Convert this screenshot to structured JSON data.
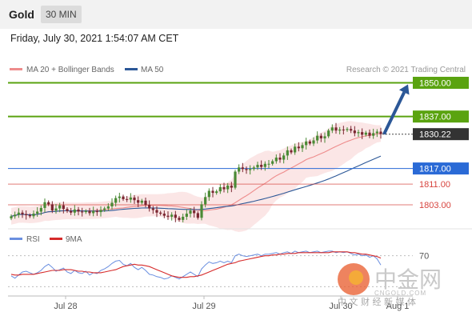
{
  "header": {
    "instrument": "Gold",
    "timeframe": "30 MIN"
  },
  "timestamp": "Friday, July 30, 2021 1:54:07 AM CET",
  "watermark": {
    "cn_name": "中金网",
    "domain": "CNGOLD.COM",
    "tagline": "中 文 财 经 新 媒 体"
  },
  "colors": {
    "resistance": "#5aa310",
    "pivot": "#2a6ad6",
    "support": "#d7443e",
    "current": "#333333",
    "ma20": "#ee8c8c",
    "ma50": "#2b5797",
    "arrow": "#2b5797",
    "rsi": "#6a8fe0",
    "rsi_ma": "#d62a2a",
    "candle_up": "#4a8a35",
    "candle_down": "#7a2530"
  },
  "chart_data": [
    {
      "type": "candlestick",
      "title": "",
      "copyright": "Research © 2021 Trading Central",
      "legend": [
        {
          "label": "MA 20 + Bollinger Bands",
          "color": "#ee8c8c"
        },
        {
          "label": "MA 50",
          "color": "#2b5797"
        }
      ],
      "x_ticks": [
        "Jul 28",
        "Jul 29",
        "Jul 30",
        "Aug 1"
      ],
      "ylim": [
        1795,
        1852
      ],
      "levels": [
        {
          "label": "1850.00",
          "value": 1850.0,
          "kind": "resistance"
        },
        {
          "label": "1837.00",
          "value": 1837.0,
          "kind": "resistance"
        },
        {
          "label": "1830.22",
          "value": 1830.22,
          "kind": "current"
        },
        {
          "label": "1817.00",
          "value": 1817.0,
          "kind": "pivot"
        },
        {
          "label": "1811.00",
          "value": 1811.0,
          "kind": "support"
        },
        {
          "label": "1803.00",
          "value": 1803.0,
          "kind": "support"
        }
      ],
      "forecast_arrow": {
        "from": 1830.22,
        "to": 1850.0,
        "direction": "up"
      },
      "closes": [
        1798.6,
        1799.2,
        1800.0,
        1799.4,
        1799.0,
        1798.6,
        1799.6,
        1800.4,
        1801.8,
        1804.0,
        1803.2,
        1800.8,
        1801.6,
        1802.8,
        1801.4,
        1800.6,
        1800.0,
        1801.2,
        1800.4,
        1800.2,
        1800.6,
        1799.8,
        1800.6,
        1800.2,
        1801.0,
        1801.6,
        1802.4,
        1803.8,
        1805.6,
        1806.2,
        1805.2,
        1805.0,
        1805.8,
        1804.8,
        1803.8,
        1804.6,
        1803.0,
        1801.6,
        1801.0,
        1800.0,
        1799.6,
        1798.8,
        1798.4,
        1799.2,
        1798.0,
        1797.2,
        1798.4,
        1799.6,
        1800.8,
        1799.8,
        1798.0,
        1803.2,
        1806.0,
        1808.4,
        1807.6,
        1808.2,
        1809.8,
        1809.0,
        1810.4,
        1809.6,
        1815.8,
        1817.4,
        1816.8,
        1816.4,
        1816.8,
        1817.4,
        1818.4,
        1817.6,
        1818.8,
        1818.8,
        1819.8,
        1821.2,
        1820.4,
        1822.0,
        1824.0,
        1823.2,
        1825.4,
        1824.8,
        1826.0,
        1827.4,
        1826.6,
        1827.8,
        1829.6,
        1828.6,
        1829.4,
        1831.6,
        1832.8,
        1831.6,
        1832.0,
        1831.8,
        1832.2,
        1831.6,
        1830.6,
        1831.0,
        1830.0,
        1830.8,
        1829.6,
        1830.6,
        1831.2,
        1830.22
      ]
    },
    {
      "type": "line",
      "title": "",
      "legend": [
        {
          "label": "RSI",
          "color": "#6a8fe0"
        },
        {
          "label": "9MA",
          "color": "#d62a2a"
        }
      ],
      "reference_levels": [
        70,
        30
      ],
      "tick_labels": [
        "70"
      ],
      "ylim": [
        20,
        80
      ],
      "series": [
        {
          "name": "RSI",
          "values": [
            44,
            41,
            45,
            49,
            50,
            48,
            46,
            48,
            51,
            56,
            59,
            55,
            50,
            52,
            54,
            49,
            47,
            51,
            48,
            47,
            50,
            45,
            48,
            47,
            51,
            53,
            56,
            60,
            63,
            64,
            59,
            57,
            60,
            55,
            52,
            55,
            51,
            46,
            45,
            43,
            42,
            40,
            41,
            44,
            42,
            40,
            43,
            46,
            49,
            46,
            43,
            53,
            58,
            62,
            60,
            61,
            63,
            61,
            63,
            61,
            70,
            72,
            70,
            69,
            70,
            71,
            72,
            70,
            72,
            72,
            73,
            74,
            72,
            74,
            75,
            73,
            76,
            74,
            75,
            76,
            74,
            75,
            76,
            74,
            75,
            76,
            76,
            74,
            75,
            74,
            75,
            73,
            71,
            72,
            70,
            71,
            68,
            70,
            66,
            58
          ]
        },
        {
          "name": "9MA",
          "values": [
            46,
            45,
            45,
            46,
            46,
            46,
            46,
            47,
            48,
            49,
            50,
            51,
            51,
            51,
            52,
            52,
            52,
            51,
            50,
            50,
            49,
            49,
            48,
            48,
            48,
            49,
            50,
            51,
            52,
            54,
            56,
            57,
            58,
            59,
            58,
            58,
            57,
            56,
            54,
            52,
            50,
            48,
            46,
            44,
            43,
            42,
            42,
            42,
            43,
            43,
            44,
            45,
            47,
            49,
            51,
            53,
            55,
            57,
            59,
            60,
            61,
            63,
            64,
            65,
            66,
            67,
            68,
            69,
            70,
            70,
            71,
            71,
            72,
            72,
            73,
            73,
            73,
            74,
            74,
            74,
            74,
            74,
            74,
            74,
            74,
            74,
            75,
            75,
            75,
            75,
            75,
            74,
            74,
            73,
            72,
            72,
            71,
            70,
            69,
            67
          ]
        }
      ]
    }
  ]
}
